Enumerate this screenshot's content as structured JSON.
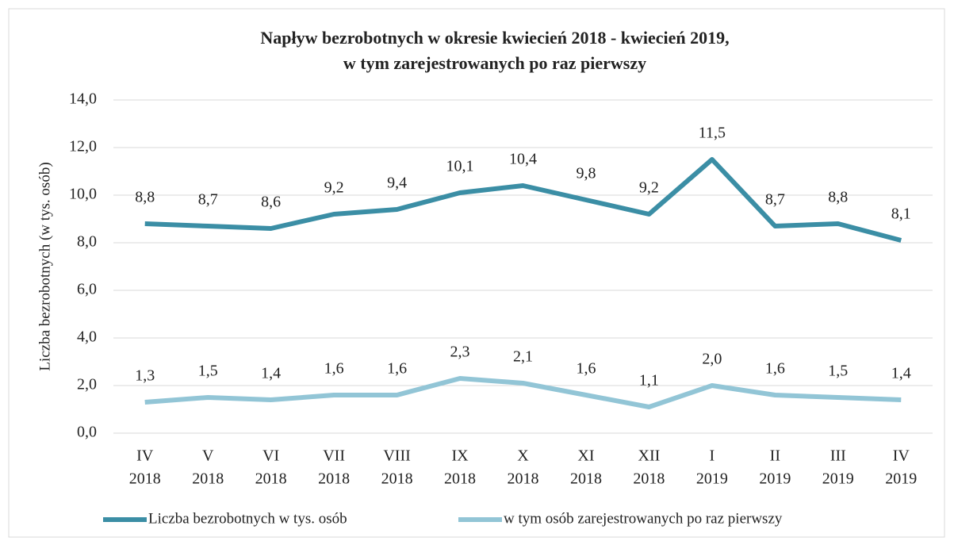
{
  "chart_data": {
    "type": "line",
    "title": [
      "Napływ  bezrobotnych w okresie kwiecień 2018 - kwiecień 2019,",
      "w tym zarejestrowanych po raz pierwszy"
    ],
    "y_label": "Liczba bezrobotnych (w tys. osób)",
    "categories": [
      [
        "IV",
        "2018"
      ],
      [
        "V",
        "2018"
      ],
      [
        "VI",
        "2018"
      ],
      [
        "VII",
        "2018"
      ],
      [
        "VIII",
        "2018"
      ],
      [
        "IX",
        "2018"
      ],
      [
        "X",
        "2018"
      ],
      [
        "XI",
        "2018"
      ],
      [
        "XII",
        "2018"
      ],
      [
        "I",
        "2019"
      ],
      [
        "II",
        "2019"
      ],
      [
        "III",
        "2019"
      ],
      [
        "IV",
        "2019"
      ]
    ],
    "series": [
      {
        "name": "Liczba bezrobotnych w tys. osób",
        "color": "#3b8ea5",
        "values": [
          8.8,
          8.7,
          8.6,
          9.2,
          9.4,
          10.1,
          10.4,
          9.8,
          9.2,
          11.5,
          8.7,
          8.8,
          8.1
        ],
        "value_labels": [
          "8,8",
          "8,7",
          "8,6",
          "9,2",
          "9,4",
          "10,1",
          "10,4",
          "9,8",
          "9,2",
          "11,5",
          "8,7",
          "8,8",
          "8,1"
        ]
      },
      {
        "name": "w tym osób zarejestrowanych po raz pierwszy",
        "color": "#92c5d6",
        "values": [
          1.3,
          1.5,
          1.4,
          1.6,
          1.6,
          2.3,
          2.1,
          1.6,
          1.1,
          2.0,
          1.6,
          1.5,
          1.4
        ],
        "value_labels": [
          "1,3",
          "1,5",
          "1,4",
          "1,6",
          "1,6",
          "2,3",
          "2,1",
          "1,6",
          "1,1",
          "2,0",
          "1,6",
          "1,5",
          "1,4"
        ]
      }
    ],
    "ylim": [
      0,
      14
    ],
    "yticks": [
      {
        "value": 0,
        "label": "0,0"
      },
      {
        "value": 2,
        "label": "2,0"
      },
      {
        "value": 4,
        "label": "4,0"
      },
      {
        "value": 6,
        "label": "6,0"
      },
      {
        "value": 8,
        "label": "8,0"
      },
      {
        "value": 10,
        "label": "10,0"
      },
      {
        "value": 12,
        "label": "12,0"
      },
      {
        "value": 14,
        "label": "14,0"
      }
    ],
    "grid": true,
    "legend": "bottom"
  }
}
